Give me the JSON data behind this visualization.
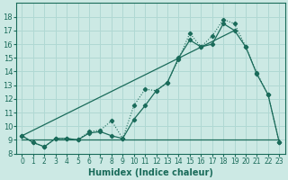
{
  "bg_color": "#cce9e4",
  "grid_color": "#b0d8d3",
  "line_color": "#1a6b5a",
  "xlabel": "Humidex (Indice chaleur)",
  "xlim": [
    -0.5,
    23.5
  ],
  "ylim": [
    8,
    19
  ],
  "yticks": [
    8,
    9,
    10,
    11,
    12,
    13,
    14,
    15,
    16,
    17,
    18
  ],
  "xticks": [
    0,
    1,
    2,
    3,
    4,
    5,
    6,
    7,
    8,
    9,
    10,
    11,
    12,
    13,
    14,
    15,
    16,
    17,
    18,
    19,
    20,
    21,
    22,
    23
  ],
  "series_zigzag_x": [
    0,
    1,
    2,
    3,
    4,
    5,
    6,
    7,
    8,
    9,
    10,
    11,
    12,
    13,
    14,
    15,
    16,
    17,
    18,
    19,
    20,
    21,
    22,
    23
  ],
  "series_zigzag_y": [
    9.3,
    8.8,
    8.5,
    9.1,
    9.1,
    9.0,
    9.6,
    9.7,
    10.4,
    9.1,
    11.5,
    12.7,
    12.6,
    13.2,
    14.9,
    16.8,
    15.8,
    16.6,
    17.8,
    17.5,
    15.8,
    13.9,
    12.3,
    8.8
  ],
  "series_smooth_x": [
    0,
    1,
    2,
    3,
    4,
    5,
    6,
    7,
    8,
    9,
    10,
    11,
    12,
    13,
    14,
    15,
    16,
    17,
    18,
    19,
    20,
    21,
    22,
    23
  ],
  "series_smooth_y": [
    9.3,
    8.8,
    8.5,
    9.1,
    9.1,
    9.0,
    9.5,
    9.6,
    9.3,
    9.1,
    10.5,
    11.5,
    12.6,
    13.2,
    15.0,
    16.3,
    15.8,
    16.0,
    17.5,
    17.0,
    15.8,
    13.8,
    12.3,
    8.8
  ],
  "series_trend_x": [
    0,
    19
  ],
  "series_trend_y": [
    9.3,
    17.0
  ],
  "flat_line_x": [
    0,
    23
  ],
  "flat_line_y": [
    9.0,
    9.0
  ]
}
